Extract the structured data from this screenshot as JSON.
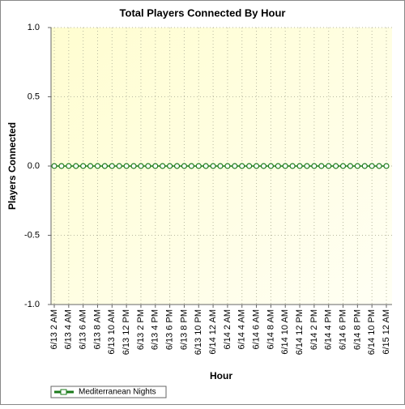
{
  "chart_data": {
    "type": "line",
    "title": "Total Players Connected By Hour",
    "x_label": "Hour",
    "y_label": "Players Connected",
    "categories": [
      "6/13 2 AM",
      null,
      "6/13 4 AM",
      null,
      "6/13 6 AM",
      null,
      "6/13 8 AM",
      null,
      "6/13 10 AM",
      null,
      "6/13 12 PM",
      null,
      "6/13 2 PM",
      null,
      "6/13 4 PM",
      null,
      "6/13 6 PM",
      null,
      "6/13 8 PM",
      null,
      "6/13 10 PM",
      null,
      "6/14 12 AM",
      null,
      "6/14 2 AM",
      null,
      "6/14 4 AM",
      null,
      "6/14 6 AM",
      null,
      "6/14 8 AM",
      null,
      "6/14 10 AM",
      null,
      "6/14 12 PM",
      null,
      "6/14 2 PM",
      null,
      "6/14 4 PM",
      null,
      "6/14 6 PM",
      null,
      "6/14 8 PM",
      null,
      "6/14 10 PM",
      null,
      "6/15 12 AM"
    ],
    "series": [
      {
        "name": "Mediterranean Nights",
        "color": "#1a7a1a",
        "values": [
          0,
          0,
          0,
          0,
          0,
          0,
          0,
          0,
          0,
          0,
          0,
          0,
          0,
          0,
          0,
          0,
          0,
          0,
          0,
          0,
          0,
          0,
          0,
          0,
          0,
          0,
          0,
          0,
          0,
          0,
          0,
          0,
          0,
          0,
          0,
          0,
          0,
          0,
          0,
          0,
          0,
          0,
          0,
          0,
          0,
          0,
          0
        ]
      }
    ],
    "ylim": [
      -1,
      1
    ],
    "yticks": [
      {
        "value": -1,
        "label": "-1.0"
      },
      -0.5,
      {
        "value": 0,
        "label": "0.0"
      },
      0.5,
      {
        "value": 1,
        "label": "1.0"
      }
    ],
    "grid": true,
    "legend": "bottom-left"
  }
}
